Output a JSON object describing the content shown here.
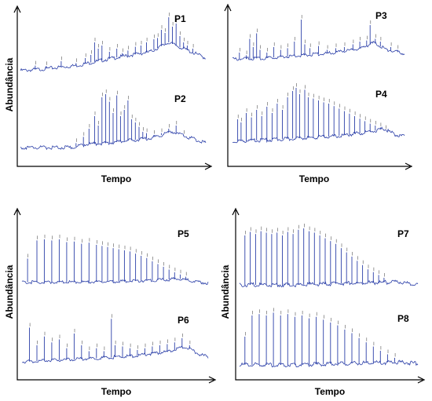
{
  "figure": {
    "axis_color": "#000000",
    "trace_color": "#2b3fa8"
  },
  "chart_data": [
    {
      "type": "line",
      "panel": "top-left",
      "xlabel": "Tempo",
      "ylabel": "Abundância",
      "grid": false,
      "series": [
        {
          "name": "P1",
          "baseline": [
            [
              0,
              0.1
            ],
            [
              0.1,
              0.12
            ],
            [
              0.3,
              0.18
            ],
            [
              0.5,
              0.3
            ],
            [
              0.7,
              0.4
            ],
            [
              0.8,
              0.55
            ],
            [
              0.88,
              0.45
            ],
            [
              1.0,
              0.3
            ]
          ],
          "peaks": [
            [
              0.08,
              0.18
            ],
            [
              0.14,
              0.17
            ],
            [
              0.22,
              0.25
            ],
            [
              0.3,
              0.22
            ],
            [
              0.35,
              0.3
            ],
            [
              0.38,
              0.35
            ],
            [
              0.4,
              0.55
            ],
            [
              0.42,
              0.45
            ],
            [
              0.44,
              0.5
            ],
            [
              0.48,
              0.4
            ],
            [
              0.52,
              0.45
            ],
            [
              0.55,
              0.38
            ],
            [
              0.58,
              0.42
            ],
            [
              0.62,
              0.48
            ],
            [
              0.65,
              0.5
            ],
            [
              0.68,
              0.55
            ],
            [
              0.72,
              0.6
            ],
            [
              0.74,
              0.62
            ],
            [
              0.76,
              0.75
            ],
            [
              0.78,
              0.7
            ],
            [
              0.8,
              0.95
            ],
            [
              0.82,
              0.8
            ],
            [
              0.84,
              0.85
            ],
            [
              0.86,
              0.65
            ],
            [
              0.88,
              0.55
            ],
            [
              0.9,
              0.5
            ],
            [
              0.93,
              0.45
            ]
          ]
        },
        {
          "name": "P2",
          "baseline": [
            [
              0,
              0.05
            ],
            [
              0.28,
              0.05
            ],
            [
              0.35,
              0.1
            ],
            [
              0.5,
              0.13
            ],
            [
              0.7,
              0.2
            ],
            [
              0.82,
              0.3
            ],
            [
              0.9,
              0.22
            ],
            [
              1.0,
              0.12
            ]
          ],
          "peaks": [
            [
              0.3,
              0.12
            ],
            [
              0.34,
              0.22
            ],
            [
              0.37,
              0.35
            ],
            [
              0.4,
              0.55
            ],
            [
              0.42,
              0.4
            ],
            [
              0.44,
              0.85
            ],
            [
              0.46,
              0.9
            ],
            [
              0.48,
              0.78
            ],
            [
              0.5,
              0.6
            ],
            [
              0.52,
              0.88
            ],
            [
              0.54,
              0.55
            ],
            [
              0.56,
              0.65
            ],
            [
              0.58,
              0.8
            ],
            [
              0.6,
              0.5
            ],
            [
              0.62,
              0.45
            ],
            [
              0.64,
              0.38
            ],
            [
              0.66,
              0.3
            ],
            [
              0.68,
              0.28
            ],
            [
              0.72,
              0.25
            ],
            [
              0.76,
              0.28
            ],
            [
              0.8,
              0.35
            ],
            [
              0.84,
              0.4
            ],
            [
              0.88,
              0.25
            ]
          ]
        }
      ]
    },
    {
      "type": "line",
      "panel": "top-right",
      "xlabel": "Tempo",
      "ylabel": "",
      "grid": false,
      "series": [
        {
          "name": "P3",
          "baseline": [
            [
              0,
              0.18
            ],
            [
              0.2,
              0.2
            ],
            [
              0.4,
              0.25
            ],
            [
              0.6,
              0.3
            ],
            [
              0.75,
              0.38
            ],
            [
              0.82,
              0.48
            ],
            [
              0.9,
              0.35
            ],
            [
              1.0,
              0.28
            ]
          ],
          "peaks": [
            [
              0.04,
              0.3
            ],
            [
              0.08,
              0.25
            ],
            [
              0.1,
              0.55
            ],
            [
              0.12,
              0.4
            ],
            [
              0.14,
              0.65
            ],
            [
              0.16,
              0.35
            ],
            [
              0.2,
              0.3
            ],
            [
              0.24,
              0.4
            ],
            [
              0.28,
              0.35
            ],
            [
              0.32,
              0.38
            ],
            [
              0.36,
              0.5
            ],
            [
              0.4,
              0.9
            ],
            [
              0.42,
              0.45
            ],
            [
              0.45,
              0.38
            ],
            [
              0.5,
              0.42
            ],
            [
              0.55,
              0.35
            ],
            [
              0.6,
              0.38
            ],
            [
              0.65,
              0.4
            ],
            [
              0.7,
              0.45
            ],
            [
              0.74,
              0.5
            ],
            [
              0.78,
              0.52
            ],
            [
              0.8,
              0.8
            ],
            [
              0.83,
              0.55
            ],
            [
              0.86,
              0.5
            ],
            [
              0.92,
              0.4
            ],
            [
              0.96,
              0.35
            ]
          ]
        },
        {
          "name": "P4",
          "baseline": [
            [
              0,
              0.1
            ],
            [
              0.2,
              0.12
            ],
            [
              0.4,
              0.15
            ],
            [
              0.6,
              0.18
            ],
            [
              0.8,
              0.25
            ],
            [
              0.88,
              0.3
            ],
            [
              0.95,
              0.2
            ],
            [
              1.0,
              0.18
            ]
          ],
          "peaks": [
            [
              0.03,
              0.45
            ],
            [
              0.05,
              0.4
            ],
            [
              0.08,
              0.55
            ],
            [
              0.11,
              0.48
            ],
            [
              0.14,
              0.6
            ],
            [
              0.17,
              0.5
            ],
            [
              0.2,
              0.65
            ],
            [
              0.23,
              0.55
            ],
            [
              0.26,
              0.7
            ],
            [
              0.29,
              0.6
            ],
            [
              0.32,
              0.8
            ],
            [
              0.35,
              0.9
            ],
            [
              0.37,
              0.95
            ],
            [
              0.39,
              0.85
            ],
            [
              0.42,
              0.92
            ],
            [
              0.44,
              0.8
            ],
            [
              0.47,
              0.78
            ],
            [
              0.5,
              0.75
            ],
            [
              0.53,
              0.72
            ],
            [
              0.56,
              0.7
            ],
            [
              0.59,
              0.66
            ],
            [
              0.62,
              0.62
            ],
            [
              0.65,
              0.58
            ],
            [
              0.68,
              0.54
            ],
            [
              0.71,
              0.5
            ],
            [
              0.74,
              0.46
            ],
            [
              0.77,
              0.42
            ],
            [
              0.8,
              0.38
            ],
            [
              0.83,
              0.35
            ],
            [
              0.86,
              0.32
            ],
            [
              0.89,
              0.28
            ]
          ]
        }
      ]
    },
    {
      "type": "line",
      "panel": "bottom-left",
      "xlabel": "Tempo",
      "ylabel": "Abundância",
      "grid": false,
      "series": [
        {
          "name": "P5",
          "baseline": [
            [
              0,
              0.12
            ],
            [
              0.3,
              0.12
            ],
            [
              0.6,
              0.14
            ],
            [
              0.85,
              0.18
            ],
            [
              0.95,
              0.12
            ],
            [
              1.0,
              0.1
            ]
          ],
          "peaks": [
            [
              0.03,
              0.55
            ],
            [
              0.08,
              0.88
            ],
            [
              0.12,
              0.9
            ],
            [
              0.16,
              0.88
            ],
            [
              0.2,
              0.9
            ],
            [
              0.24,
              0.85
            ],
            [
              0.28,
              0.86
            ],
            [
              0.32,
              0.82
            ],
            [
              0.36,
              0.84
            ],
            [
              0.4,
              0.8
            ],
            [
              0.43,
              0.78
            ],
            [
              0.46,
              0.76
            ],
            [
              0.49,
              0.74
            ],
            [
              0.52,
              0.72
            ],
            [
              0.55,
              0.7
            ],
            [
              0.58,
              0.68
            ],
            [
              0.61,
              0.64
            ],
            [
              0.64,
              0.6
            ],
            [
              0.67,
              0.56
            ],
            [
              0.7,
              0.5
            ],
            [
              0.73,
              0.45
            ],
            [
              0.76,
              0.4
            ],
            [
              0.79,
              0.35
            ],
            [
              0.82,
              0.3
            ],
            [
              0.85,
              0.26
            ],
            [
              0.88,
              0.22
            ]
          ]
        },
        {
          "name": "P6",
          "baseline": [
            [
              0,
              0.12
            ],
            [
              0.2,
              0.15
            ],
            [
              0.4,
              0.18
            ],
            [
              0.6,
              0.22
            ],
            [
              0.8,
              0.3
            ],
            [
              0.88,
              0.38
            ],
            [
              0.95,
              0.25
            ],
            [
              1.0,
              0.2
            ]
          ],
          "peaks": [
            [
              0.04,
              0.7
            ],
            [
              0.08,
              0.4
            ],
            [
              0.12,
              0.55
            ],
            [
              0.16,
              0.45
            ],
            [
              0.2,
              0.5
            ],
            [
              0.24,
              0.35
            ],
            [
              0.28,
              0.6
            ],
            [
              0.32,
              0.4
            ],
            [
              0.36,
              0.3
            ],
            [
              0.4,
              0.35
            ],
            [
              0.44,
              0.3
            ],
            [
              0.48,
              0.85
            ],
            [
              0.5,
              0.4
            ],
            [
              0.54,
              0.38
            ],
            [
              0.58,
              0.35
            ],
            [
              0.62,
              0.32
            ],
            [
              0.66,
              0.35
            ],
            [
              0.7,
              0.38
            ],
            [
              0.74,
              0.4
            ],
            [
              0.78,
              0.42
            ],
            [
              0.82,
              0.45
            ],
            [
              0.86,
              0.52
            ],
            [
              0.9,
              0.4
            ]
          ]
        }
      ]
    },
    {
      "type": "line",
      "panel": "bottom-right",
      "xlabel": "Tempo",
      "ylabel": "Abundância",
      "grid": false,
      "series": [
        {
          "name": "P7",
          "baseline": [
            [
              0,
              0.1
            ],
            [
              0.3,
              0.1
            ],
            [
              0.6,
              0.12
            ],
            [
              0.9,
              0.14
            ],
            [
              1.0,
              0.1
            ]
          ],
          "peaks": [
            [
              0.03,
              0.8
            ],
            [
              0.06,
              0.85
            ],
            [
              0.09,
              0.82
            ],
            [
              0.12,
              0.86
            ],
            [
              0.15,
              0.84
            ],
            [
              0.18,
              0.82
            ],
            [
              0.21,
              0.84
            ],
            [
              0.24,
              0.8
            ],
            [
              0.27,
              0.85
            ],
            [
              0.3,
              0.82
            ],
            [
              0.33,
              0.88
            ],
            [
              0.36,
              0.9
            ],
            [
              0.39,
              0.86
            ],
            [
              0.42,
              0.84
            ],
            [
              0.45,
              0.8
            ],
            [
              0.48,
              0.76
            ],
            [
              0.51,
              0.72
            ],
            [
              0.54,
              0.68
            ],
            [
              0.57,
              0.62
            ],
            [
              0.6,
              0.56
            ],
            [
              0.63,
              0.5
            ],
            [
              0.66,
              0.44
            ],
            [
              0.69,
              0.38
            ],
            [
              0.72,
              0.32
            ],
            [
              0.75,
              0.28
            ],
            [
              0.78,
              0.24
            ],
            [
              0.81,
              0.2
            ]
          ]
        },
        {
          "name": "P8",
          "baseline": [
            [
              0,
              0.1
            ],
            [
              0.3,
              0.1
            ],
            [
              0.6,
              0.12
            ],
            [
              0.9,
              0.14
            ],
            [
              1.0,
              0.12
            ]
          ],
          "peaks": [
            [
              0.03,
              0.5
            ],
            [
              0.07,
              0.8
            ],
            [
              0.11,
              0.82
            ],
            [
              0.15,
              0.8
            ],
            [
              0.19,
              0.84
            ],
            [
              0.23,
              0.8
            ],
            [
              0.27,
              0.82
            ],
            [
              0.31,
              0.78
            ],
            [
              0.35,
              0.8
            ],
            [
              0.39,
              0.76
            ],
            [
              0.43,
              0.78
            ],
            [
              0.47,
              0.74
            ],
            [
              0.51,
              0.7
            ],
            [
              0.55,
              0.66
            ],
            [
              0.59,
              0.6
            ],
            [
              0.63,
              0.55
            ],
            [
              0.67,
              0.48
            ],
            [
              0.71,
              0.42
            ],
            [
              0.75,
              0.36
            ],
            [
              0.79,
              0.3
            ],
            [
              0.83,
              0.25
            ],
            [
              0.87,
              0.2
            ]
          ]
        }
      ]
    }
  ]
}
